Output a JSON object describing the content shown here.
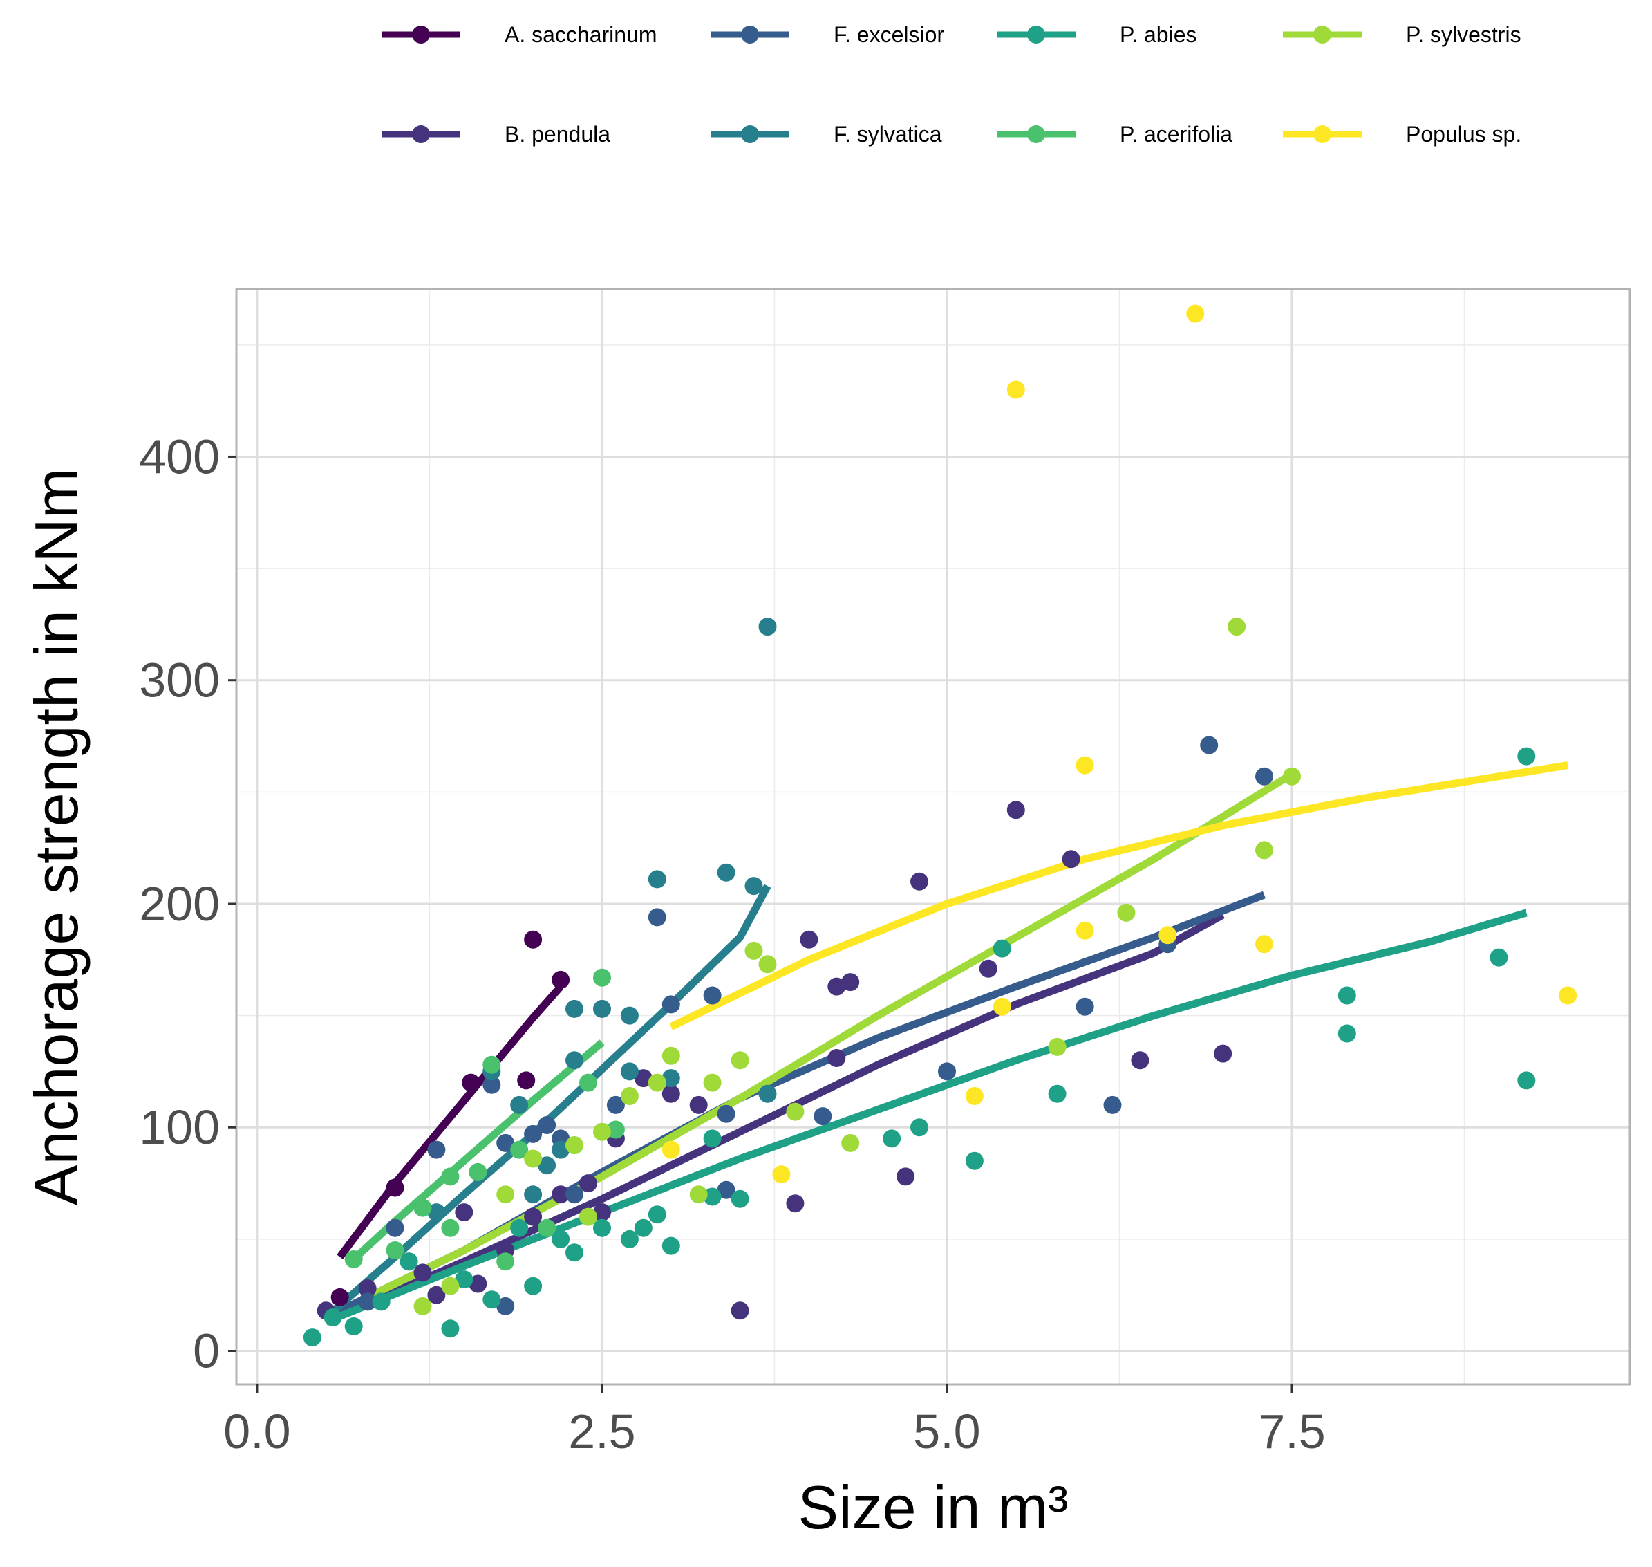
{
  "chart_data": {
    "type": "scatter",
    "xlabel": "Size in m³",
    "ylabel": "Anchorage strength in kNm",
    "xlim": [
      -0.15,
      9.95
    ],
    "ylim": [
      -15,
      475
    ],
    "x_ticks": [
      0.0,
      2.5,
      5.0,
      7.5
    ],
    "x_tick_labels": [
      "0.0",
      "2.5",
      "5.0",
      "7.5"
    ],
    "y_ticks": [
      0,
      100,
      200,
      300,
      400
    ],
    "y_tick_labels": [
      "0",
      "100",
      "200",
      "300",
      "400"
    ],
    "grid": true,
    "legend_position": "top",
    "series": [
      {
        "name": "A. saccharinum",
        "color": "#440154",
        "points": [
          [
            1.0,
            73
          ],
          [
            1.55,
            120
          ],
          [
            1.95,
            121
          ],
          [
            2.0,
            184
          ],
          [
            2.2,
            166
          ],
          [
            0.6,
            24
          ],
          [
            1.1,
            40
          ]
        ],
        "fit": [
          [
            0.6,
            42
          ],
          [
            1.0,
            75
          ],
          [
            1.5,
            112
          ],
          [
            2.0,
            149
          ],
          [
            2.2,
            163
          ]
        ]
      },
      {
        "name": "B. pendula",
        "color": "#46337E",
        "points": [
          [
            0.5,
            18
          ],
          [
            0.8,
            28
          ],
          [
            1.2,
            35
          ],
          [
            1.5,
            62
          ],
          [
            1.8,
            45
          ],
          [
            2.0,
            60
          ],
          [
            2.2,
            70
          ],
          [
            2.4,
            75
          ],
          [
            2.6,
            95
          ],
          [
            2.8,
            122
          ],
          [
            3.0,
            115
          ],
          [
            3.2,
            110
          ],
          [
            3.5,
            18
          ],
          [
            3.9,
            66
          ],
          [
            4.0,
            184
          ],
          [
            4.2,
            163
          ],
          [
            4.3,
            165
          ],
          [
            4.2,
            131
          ],
          [
            4.7,
            78
          ],
          [
            4.8,
            210
          ],
          [
            5.3,
            171
          ],
          [
            5.5,
            242
          ],
          [
            5.9,
            220
          ],
          [
            6.4,
            130
          ],
          [
            7.0,
            133
          ],
          [
            1.3,
            25
          ],
          [
            1.6,
            30
          ],
          [
            2.5,
            62
          ]
        ],
        "fit": [
          [
            0.5,
            13
          ],
          [
            1.5,
            40
          ],
          [
            2.5,
            68
          ],
          [
            3.5,
            98
          ],
          [
            4.5,
            128
          ],
          [
            5.5,
            155
          ],
          [
            6.5,
            178
          ],
          [
            7.0,
            195
          ]
        ]
      },
      {
        "name": "F. excelsior",
        "color": "#365C8D",
        "points": [
          [
            1.3,
            90
          ],
          [
            1.7,
            119
          ],
          [
            1.8,
            93
          ],
          [
            2.0,
            97
          ],
          [
            2.1,
            101
          ],
          [
            2.2,
            95
          ],
          [
            2.3,
            70
          ],
          [
            2.6,
            110
          ],
          [
            2.9,
            194
          ],
          [
            3.0,
            155
          ],
          [
            3.3,
            159
          ],
          [
            3.4,
            106
          ],
          [
            3.4,
            72
          ],
          [
            4.1,
            105
          ],
          [
            5.0,
            125
          ],
          [
            6.0,
            154
          ],
          [
            6.2,
            110
          ],
          [
            6.6,
            182
          ],
          [
            6.9,
            271
          ],
          [
            7.3,
            257
          ],
          [
            1.8,
            20
          ],
          [
            0.8,
            22
          ],
          [
            1.0,
            55
          ]
        ],
        "fit": [
          [
            0.5,
            15
          ],
          [
            1.5,
            45
          ],
          [
            2.5,
            80
          ],
          [
            3.5,
            113
          ],
          [
            4.5,
            140
          ],
          [
            5.5,
            163
          ],
          [
            6.5,
            185
          ],
          [
            7.3,
            204
          ]
        ]
      },
      {
        "name": "F. sylvatica",
        "color": "#277F8E",
        "points": [
          [
            1.3,
            62
          ],
          [
            1.7,
            125
          ],
          [
            1.9,
            110
          ],
          [
            2.1,
            83
          ],
          [
            2.2,
            90
          ],
          [
            2.3,
            153
          ],
          [
            2.5,
            153
          ],
          [
            2.3,
            130
          ],
          [
            2.7,
            150
          ],
          [
            2.7,
            125
          ],
          [
            2.9,
            211
          ],
          [
            3.0,
            122
          ],
          [
            3.4,
            214
          ],
          [
            3.7,
            324
          ],
          [
            3.6,
            208
          ],
          [
            3.7,
            115
          ],
          [
            2.0,
            70
          ]
        ],
        "fit": [
          [
            0.5,
            15
          ],
          [
            1.0,
            42
          ],
          [
            1.5,
            70
          ],
          [
            2.0,
            97
          ],
          [
            2.5,
            126
          ],
          [
            3.0,
            155
          ],
          [
            3.5,
            185
          ],
          [
            3.7,
            208
          ]
        ]
      },
      {
        "name": "P. abies",
        "color": "#1FA187",
        "points": [
          [
            0.4,
            6
          ],
          [
            0.55,
            15
          ],
          [
            0.7,
            11
          ],
          [
            0.9,
            22
          ],
          [
            1.1,
            40
          ],
          [
            1.4,
            10
          ],
          [
            1.5,
            32
          ],
          [
            1.7,
            23
          ],
          [
            1.9,
            55
          ],
          [
            2.0,
            29
          ],
          [
            2.2,
            50
          ],
          [
            2.3,
            44
          ],
          [
            2.5,
            55
          ],
          [
            2.7,
            50
          ],
          [
            2.8,
            55
          ],
          [
            2.9,
            61
          ],
          [
            3.0,
            47
          ],
          [
            3.3,
            95
          ],
          [
            3.3,
            69
          ],
          [
            3.5,
            68
          ],
          [
            4.6,
            95
          ],
          [
            4.8,
            100
          ],
          [
            5.2,
            85
          ],
          [
            5.4,
            180
          ],
          [
            5.8,
            115
          ],
          [
            7.9,
            159
          ],
          [
            7.9,
            142
          ],
          [
            9.0,
            176
          ],
          [
            9.2,
            266
          ],
          [
            9.2,
            121
          ]
        ],
        "fit": [
          [
            0.5,
            13
          ],
          [
            1.5,
            38
          ],
          [
            2.5,
            62
          ],
          [
            3.5,
            86
          ],
          [
            4.5,
            108
          ],
          [
            5.5,
            130
          ],
          [
            6.5,
            150
          ],
          [
            7.5,
            168
          ],
          [
            8.5,
            183
          ],
          [
            9.2,
            196
          ]
        ]
      },
      {
        "name": "P. acerifolia",
        "color": "#4AC16D",
        "points": [
          [
            0.7,
            41
          ],
          [
            1.0,
            45
          ],
          [
            1.2,
            64
          ],
          [
            1.4,
            78
          ],
          [
            1.6,
            80
          ],
          [
            1.7,
            128
          ],
          [
            1.9,
            90
          ],
          [
            2.1,
            55
          ],
          [
            2.3,
            92
          ],
          [
            2.4,
            120
          ],
          [
            2.5,
            167
          ],
          [
            2.6,
            99
          ],
          [
            1.4,
            55
          ],
          [
            1.8,
            40
          ]
        ],
        "fit": [
          [
            0.7,
            41
          ],
          [
            1.0,
            58
          ],
          [
            1.5,
            85
          ],
          [
            2.0,
            112
          ],
          [
            2.5,
            138
          ]
        ]
      },
      {
        "name": "P. sylvestris",
        "color": "#A0DA39",
        "points": [
          [
            1.2,
            20
          ],
          [
            1.4,
            29
          ],
          [
            1.8,
            70
          ],
          [
            2.0,
            86
          ],
          [
            2.3,
            92
          ],
          [
            2.5,
            98
          ],
          [
            2.7,
            114
          ],
          [
            2.9,
            120
          ],
          [
            3.0,
            132
          ],
          [
            3.2,
            70
          ],
          [
            3.3,
            120
          ],
          [
            3.5,
            130
          ],
          [
            3.6,
            179
          ],
          [
            3.7,
            173
          ],
          [
            3.9,
            107
          ],
          [
            4.3,
            93
          ],
          [
            5.8,
            136
          ],
          [
            6.3,
            196
          ],
          [
            7.1,
            324
          ],
          [
            7.3,
            224
          ],
          [
            7.5,
            257
          ],
          [
            2.4,
            60
          ]
        ],
        "fit": [
          [
            0.8,
            24
          ],
          [
            1.5,
            45
          ],
          [
            2.5,
            78
          ],
          [
            3.5,
            113
          ],
          [
            4.5,
            150
          ],
          [
            5.5,
            185
          ],
          [
            6.5,
            220
          ],
          [
            7.5,
            258
          ]
        ]
      },
      {
        "name": "Populus sp.",
        "color": "#FDE725",
        "points": [
          [
            3.0,
            90
          ],
          [
            3.8,
            79
          ],
          [
            5.2,
            114
          ],
          [
            5.4,
            154
          ],
          [
            5.5,
            430
          ],
          [
            6.0,
            188
          ],
          [
            6.0,
            262
          ],
          [
            6.8,
            464
          ],
          [
            7.3,
            182
          ],
          [
            9.5,
            159
          ],
          [
            6.6,
            186
          ]
        ],
        "fit": [
          [
            3.0,
            145
          ],
          [
            4.0,
            175
          ],
          [
            5.0,
            200
          ],
          [
            6.0,
            220
          ],
          [
            7.0,
            235
          ],
          [
            8.0,
            247
          ],
          [
            9.0,
            257
          ],
          [
            9.5,
            262
          ]
        ]
      }
    ]
  }
}
